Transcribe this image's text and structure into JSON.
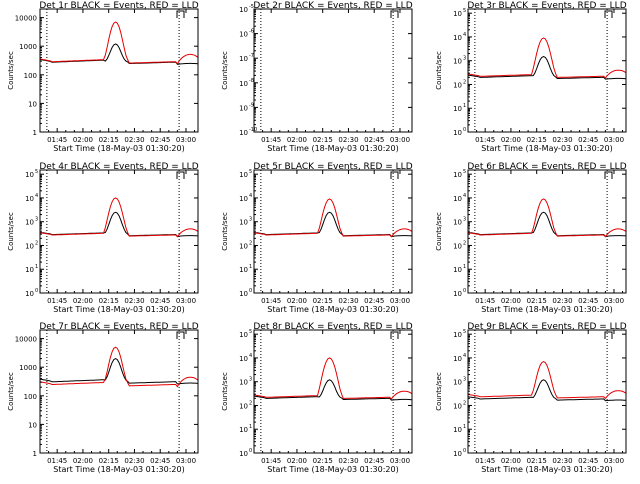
{
  "figure": {
    "colors": {
      "events": "#000000",
      "lld": "#e60000",
      "axes": "#000000",
      "background": "#ffffff"
    }
  },
  "chart_data": [
    {
      "type": "line",
      "title": "Det 1r BLACK = Events, RED = LLD",
      "xlabel": "Start Time (18-May-03 01:30:20)",
      "ylabel": "Counts/sec",
      "yscale": "log",
      "ylim": [
        1,
        20000
      ],
      "ytick_labels": [
        "1",
        "10",
        "100",
        "1000",
        "10000"
      ],
      "ytick_values": [
        1,
        10,
        100,
        1000,
        10000
      ],
      "ytick_style": "plain",
      "xlim": [
        5.0,
        97.0
      ],
      "xtick_labels": [
        "01:45",
        "02:00",
        "02:15",
        "02:30",
        "02:45",
        "03:00"
      ],
      "xtick_values": [
        15,
        30,
        45,
        60,
        75,
        90
      ],
      "vlines": [
        9,
        86
      ],
      "has_marker": true,
      "has_data": true,
      "peak_events": 1200,
      "peak_lld": 7000,
      "end_events": 250,
      "end_lld": 520,
      "series": [
        {
          "name": "Events",
          "color": "#000000"
        },
        {
          "name": "LLD",
          "color": "#e60000"
        }
      ]
    },
    {
      "type": "line",
      "title": "Det 2r BLACK = Events, RED = LLD",
      "xlabel": "Start Time (18-May-03 01:30:20)",
      "ylabel": "Counts/sec",
      "yscale": "log",
      "ylim": [
        1e-10,
        1e-05
      ],
      "ytick_labels": [
        "10",
        "10",
        "10",
        "10",
        "10",
        "10"
      ],
      "ytick_exponents": [
        "-10",
        "-9",
        "-8",
        "-7",
        "-6",
        "-5"
      ],
      "ytick_values": [
        1e-10,
        1e-09,
        1e-08,
        1e-07,
        1e-06,
        1e-05
      ],
      "ytick_style": "power",
      "xlim": [
        5.0,
        97.0
      ],
      "xtick_labels": [
        "01:45",
        "02:00",
        "02:15",
        "02:30",
        "02:45",
        "03:00"
      ],
      "xtick_values": [
        15,
        30,
        45,
        60,
        75,
        90
      ],
      "vlines": [
        9,
        86
      ],
      "has_marker": true,
      "has_data": false,
      "series": []
    },
    {
      "type": "line",
      "title": "Det 3r BLACK = Events, RED = LLD",
      "xlabel": "Start Time (18-May-03 01:30:20)",
      "ylabel": "Counts/sec",
      "yscale": "log",
      "ylim": [
        1,
        150000
      ],
      "ytick_labels": [
        "10",
        "10",
        "10",
        "10",
        "10",
        "10"
      ],
      "ytick_exponents": [
        "0",
        "1",
        "2",
        "3",
        "4",
        "5"
      ],
      "ytick_values": [
        1,
        10,
        100,
        1000,
        10000,
        100000
      ],
      "ytick_style": "power",
      "xlim": [
        5.0,
        97.0
      ],
      "xtick_labels": [
        "01:45",
        "02:00",
        "02:15",
        "02:30",
        "02:45",
        "03:00"
      ],
      "xtick_values": [
        15,
        30,
        45,
        60,
        75,
        90
      ],
      "vlines": [
        9,
        86
      ],
      "has_marker": true,
      "has_data": true,
      "peak_events": 1500,
      "peak_lld": 9000,
      "end_events": 180,
      "end_lld": 400,
      "series": [
        {
          "name": "Events",
          "color": "#000000"
        },
        {
          "name": "LLD",
          "color": "#e60000"
        }
      ]
    },
    {
      "type": "line",
      "title": "Det 4r BLACK = Events, RED = LLD",
      "xlabel": "Start Time (18-May-03 01:30:20)",
      "ylabel": "Counts/sec",
      "yscale": "log",
      "ylim": [
        1,
        150000
      ],
      "ytick_labels": [
        "10",
        "10",
        "10",
        "10",
        "10",
        "10"
      ],
      "ytick_exponents": [
        "0",
        "1",
        "2",
        "3",
        "4",
        "5"
      ],
      "ytick_values": [
        1,
        10,
        100,
        1000,
        10000,
        100000
      ],
      "ytick_style": "power",
      "xlim": [
        5.0,
        97.0
      ],
      "xtick_labels": [
        "01:45",
        "02:00",
        "02:15",
        "02:30",
        "02:45",
        "03:00"
      ],
      "xtick_values": [
        15,
        30,
        45,
        60,
        75,
        90
      ],
      "vlines": [
        9,
        86
      ],
      "has_marker": true,
      "has_data": true,
      "peak_events": 2500,
      "peak_lld": 10000,
      "end_events": 260,
      "end_lld": 500,
      "series": [
        {
          "name": "Events",
          "color": "#000000"
        },
        {
          "name": "LLD",
          "color": "#e60000"
        }
      ]
    },
    {
      "type": "line",
      "title": "Det 5r BLACK = Events, RED = LLD",
      "xlabel": "Start Time (18-May-03 01:30:20)",
      "ylabel": "Counts/sec",
      "yscale": "log",
      "ylim": [
        1,
        150000
      ],
      "ytick_labels": [
        "10",
        "10",
        "10",
        "10",
        "10",
        "10"
      ],
      "ytick_exponents": [
        "0",
        "1",
        "2",
        "3",
        "4",
        "5"
      ],
      "ytick_values": [
        1,
        10,
        100,
        1000,
        10000,
        100000
      ],
      "ytick_style": "power",
      "xlim": [
        5.0,
        97.0
      ],
      "xtick_labels": [
        "01:45",
        "02:00",
        "02:15",
        "02:30",
        "02:45",
        "03:00"
      ],
      "xtick_values": [
        15,
        30,
        45,
        60,
        75,
        90
      ],
      "vlines": [
        9,
        86
      ],
      "has_marker": true,
      "has_data": true,
      "peak_events": 2500,
      "peak_lld": 9000,
      "end_events": 260,
      "end_lld": 500,
      "series": [
        {
          "name": "Events",
          "color": "#000000"
        },
        {
          "name": "LLD",
          "color": "#e60000"
        }
      ]
    },
    {
      "type": "line",
      "title": "Det 6r BLACK = Events, RED = LLD",
      "xlabel": "Start Time (18-May-03 01:30:20)",
      "ylabel": "Counts/sec",
      "yscale": "log",
      "ylim": [
        1,
        150000
      ],
      "ytick_labels": [
        "10",
        "10",
        "10",
        "10",
        "10",
        "10"
      ],
      "ytick_exponents": [
        "0",
        "1",
        "2",
        "3",
        "4",
        "5"
      ],
      "ytick_values": [
        1,
        10,
        100,
        1000,
        10000,
        100000
      ],
      "ytick_style": "power",
      "xlim": [
        5.0,
        97.0
      ],
      "xtick_labels": [
        "01:45",
        "02:00",
        "02:15",
        "02:30",
        "02:45",
        "03:00"
      ],
      "xtick_values": [
        15,
        30,
        45,
        60,
        75,
        90
      ],
      "vlines": [
        9,
        86
      ],
      "has_marker": true,
      "has_data": true,
      "peak_events": 2500,
      "peak_lld": 9000,
      "end_events": 260,
      "end_lld": 500,
      "series": [
        {
          "name": "Events",
          "color": "#000000"
        },
        {
          "name": "LLD",
          "color": "#e60000"
        }
      ]
    },
    {
      "type": "line",
      "title": "Det 7r BLACK = Events, RED = LLD",
      "xlabel": "Start Time (18-May-03 01:30:20)",
      "ylabel": "Counts/sec",
      "yscale": "log",
      "ylim": [
        1,
        20000
      ],
      "ytick_labels": [
        "1",
        "10",
        "100",
        "1000",
        "10000"
      ],
      "ytick_values": [
        1,
        10,
        100,
        1000,
        10000
      ],
      "ytick_style": "plain",
      "xlim": [
        5.0,
        97.0
      ],
      "xtick_labels": [
        "01:45",
        "02:00",
        "02:15",
        "02:30",
        "02:45",
        "03:00"
      ],
      "xtick_values": [
        15,
        30,
        45,
        60,
        75,
        90
      ],
      "vlines": [
        9,
        86
      ],
      "has_marker": true,
      "has_data": true,
      "peak_events": 2000,
      "peak_lld": 5000,
      "end_events": 280,
      "end_lld": 450,
      "series": [
        {
          "name": "Events",
          "color": "#000000"
        },
        {
          "name": "LLD",
          "color": "#e60000"
        }
      ]
    },
    {
      "type": "line",
      "title": "Det 8r BLACK = Events, RED = LLD",
      "xlabel": "Start Time (18-May-03 01:30:20)",
      "ylabel": "Counts/sec",
      "yscale": "log",
      "ylim": [
        1,
        150000
      ],
      "ytick_labels": [
        "10",
        "10",
        "10",
        "10",
        "10",
        "10"
      ],
      "ytick_exponents": [
        "0",
        "1",
        "2",
        "3",
        "4",
        "5"
      ],
      "ytick_values": [
        1,
        10,
        100,
        1000,
        10000,
        100000
      ],
      "ytick_style": "power",
      "xlim": [
        5.0,
        97.0
      ],
      "xtick_labels": [
        "01:45",
        "02:00",
        "02:15",
        "02:30",
        "02:45",
        "03:00"
      ],
      "xtick_values": [
        15,
        30,
        45,
        60,
        75,
        90
      ],
      "vlines": [
        9,
        86
      ],
      "has_marker": true,
      "has_data": true,
      "peak_events": 1200,
      "peak_lld": 10000,
      "end_events": 180,
      "end_lld": 400,
      "series": [
        {
          "name": "Events",
          "color": "#000000"
        },
        {
          "name": "LLD",
          "color": "#e60000"
        }
      ]
    },
    {
      "type": "line",
      "title": "Det 9r BLACK = Events, RED = LLD",
      "xlabel": "Start Time (18-May-03 01:30:20)",
      "ylabel": "Counts/sec",
      "yscale": "log",
      "ylim": [
        1,
        150000
      ],
      "ytick_labels": [
        "10",
        "10",
        "10",
        "10",
        "10",
        "10"
      ],
      "ytick_exponents": [
        "0",
        "1",
        "2",
        "3",
        "4",
        "5"
      ],
      "ytick_values": [
        1,
        10,
        100,
        1000,
        10000,
        100000
      ],
      "ytick_style": "power",
      "xlim": [
        5.0,
        97.0
      ],
      "xtick_labels": [
        "01:45",
        "02:00",
        "02:15",
        "02:30",
        "02:45",
        "03:00"
      ],
      "xtick_values": [
        15,
        30,
        45,
        60,
        75,
        90
      ],
      "vlines": [
        9,
        86
      ],
      "has_marker": true,
      "has_data": true,
      "peak_events": 1200,
      "peak_lld": 7000,
      "end_events": 170,
      "end_lld": 420,
      "series": [
        {
          "name": "Events",
          "color": "#000000"
        },
        {
          "name": "LLD",
          "color": "#e60000"
        }
      ]
    }
  ]
}
